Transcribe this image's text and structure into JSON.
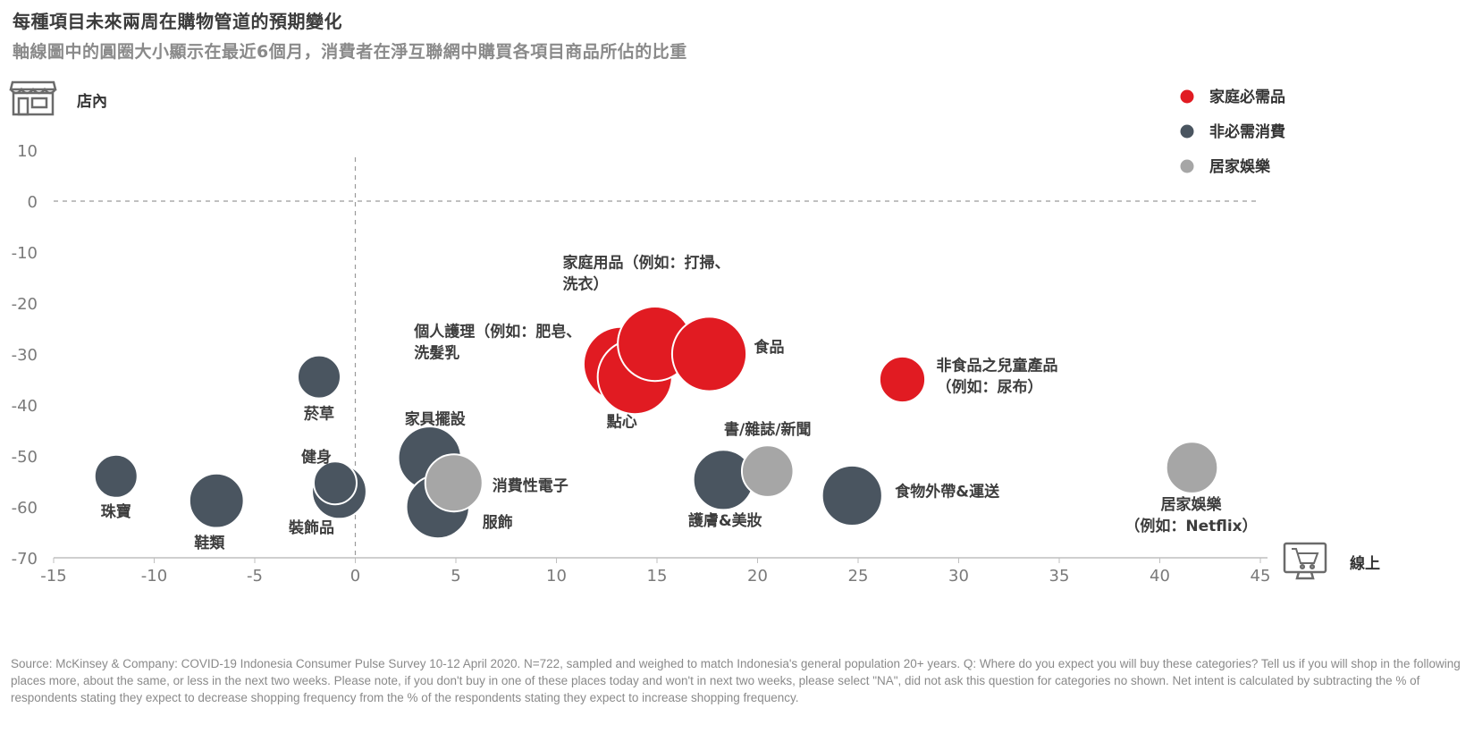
{
  "header": {
    "title": "每種項目未來兩周在購物管道的預期變化",
    "subtitle": "軸線圖中的圓圈大小顯示在最近6個月，消費者在淨互聯網中購買各項目商品所佔的比重"
  },
  "footer": {
    "source": "Source: McKinsey & Company: COVID-19 Indonesia Consumer Pulse Survey 10-12 April 2020. N=722, sampled and weighed to match Indonesia's general population 20+ years. Q: Where do you expect you will buy these categories? Tell us if you will shop in the following places more, about the same, or less in the next two weeks. Please note, if you don't buy in one of these places today and won't in next two weeks, please select \"NA\", did not ask this question for categories no shown. Net intent is calculated by subtracting the % of respondents stating they expect to decrease shopping frequency from the % of the respondents stating they expect to increase shopping frequency."
  },
  "axis_names": {
    "y_top": "店內",
    "x_right": "線上"
  },
  "icons": {
    "store": "store-icon",
    "online": "online-shop-icon"
  },
  "colors": {
    "essentials": "#e11b22",
    "discretionary": "#4a5560",
    "entertainment": "#a6a6a6"
  },
  "chart_data": {
    "type": "scatter",
    "xlim": [
      -15,
      45
    ],
    "ylim": [
      -70,
      10
    ],
    "x_ticks": [
      "-15",
      "-10",
      "-5",
      "0",
      "5",
      "10",
      "15",
      "20",
      "25",
      "30",
      "35",
      "40",
      "45"
    ],
    "y_ticks": [
      "10",
      "0",
      "-10",
      "-20",
      "-30",
      "-40",
      "-50",
      "-60",
      "-70"
    ],
    "grid": false,
    "legend": {
      "position": "top-right",
      "items": [
        {
          "label": "家庭必需品",
          "group": "essentials"
        },
        {
          "label": "非必需消費",
          "group": "discretionary"
        },
        {
          "label": "居家娛樂",
          "group": "entertainment"
        }
      ]
    },
    "points": [
      {
        "label": "家庭用品（例如：打掃、洗衣）",
        "lines": [
          "家庭用品（例如：打掃、",
          "洗衣）"
        ],
        "x": 13.2,
        "y": -32,
        "size": 1.3,
        "group": "essentials"
      },
      {
        "label": "個人護理（例如：肥皂、洗髮乳",
        "lines": [
          "個人護理（例如：肥皂、",
          "洗髮乳"
        ],
        "x": 13.9,
        "y": -34.5,
        "size": 1.3,
        "group": "essentials"
      },
      {
        "label": "點心",
        "lines": [
          "點心"
        ],
        "x": 14.9,
        "y": -28,
        "size": 1.3,
        "group": "essentials"
      },
      {
        "label": "食品",
        "lines": [
          "食品"
        ],
        "x": 17.6,
        "y": -30,
        "size": 1.3,
        "group": "essentials"
      },
      {
        "label": "非食品之兒童產品（例如：尿布）",
        "lines": [
          "非食品之兒童產品",
          "（例如：尿布）"
        ],
        "x": 27.2,
        "y": -35,
        "size": 0.8,
        "group": "essentials"
      },
      {
        "label": "菸草",
        "lines": [
          "菸草"
        ],
        "x": -1.8,
        "y": -34.5,
        "size": 0.75,
        "group": "discretionary"
      },
      {
        "label": "珠寶",
        "lines": [
          "珠寶"
        ],
        "x": -11.9,
        "y": -54,
        "size": 0.75,
        "group": "discretionary"
      },
      {
        "label": "鞋類",
        "lines": [
          "鞋類"
        ],
        "x": -6.9,
        "y": -58.8,
        "size": 0.95,
        "group": "discretionary"
      },
      {
        "label": "裝飾品",
        "lines": [
          "裝飾品"
        ],
        "x": -0.8,
        "y": -57,
        "size": 0.95,
        "group": "discretionary"
      },
      {
        "label": "健身",
        "lines": [
          "健身"
        ],
        "x": -1.0,
        "y": -55.3,
        "size": 0.75,
        "group": "discretionary"
      },
      {
        "label": "家具擺設",
        "lines": [
          "家具擺設"
        ],
        "x": 3.7,
        "y": -50.4,
        "size": 1.1,
        "group": "discretionary"
      },
      {
        "label": "服飾",
        "lines": [
          "服飾"
        ],
        "x": 4.1,
        "y": -60,
        "size": 1.1,
        "group": "discretionary"
      },
      {
        "label": "護膚&美妝",
        "lines": [
          "護膚&美妝"
        ],
        "x": 18.3,
        "y": -54.7,
        "size": 1.05,
        "group": "discretionary"
      },
      {
        "label": "食物外帶&運送",
        "lines": [
          "食物外帶&運送"
        ],
        "x": 24.7,
        "y": -57.8,
        "size": 1.05,
        "group": "discretionary"
      },
      {
        "label": "消費性電子",
        "lines": [
          "消費性電子"
        ],
        "x": 4.9,
        "y": -55.3,
        "size": 1.0,
        "group": "entertainment"
      },
      {
        "label": "書/雜誌/新聞",
        "lines": [
          "書/雜誌/新聞"
        ],
        "x": 20.5,
        "y": -53,
        "size": 0.9,
        "group": "entertainment"
      },
      {
        "label": "居家娛樂（例如：Netflix）",
        "lines": [
          "居家娛樂",
          "（例如：Netflix）"
        ],
        "x": 41.6,
        "y": -52.3,
        "size": 0.9,
        "group": "entertainment"
      }
    ]
  }
}
